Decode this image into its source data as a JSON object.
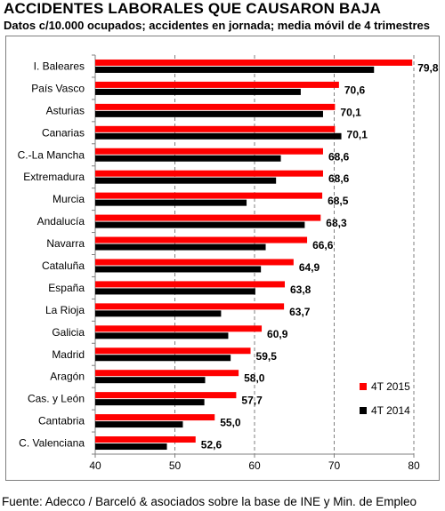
{
  "header": {
    "title": "ACCIDENTES LABORALES QUE CAUSARON BAJA",
    "subtitle": "Datos c/10.000 ocupados; accidentes en jornada; media móvil de 4 trimestres"
  },
  "footer": {
    "source": "Fuente: Adecco / Barceló & asociados sobre la base de INE y Min. de Empleo"
  },
  "chart_data": {
    "type": "bar",
    "orientation": "horizontal",
    "title": "ACCIDENTES LABORALES QUE CAUSARON BAJA",
    "subtitle": "Datos c/10.000 ocupados; accidentes en jornada; media móvil de 4 trimestres",
    "categories": [
      "I. Baleares",
      "País Vasco",
      "Asturias",
      "Canarias",
      "C.-La Mancha",
      "Extremadura",
      "Murcia",
      "Andalucía",
      "Navarra",
      "Cataluña",
      "España",
      "La Rioja",
      "Galicia",
      "Madrid",
      "Aragón",
      "Cas. y León",
      "Cantabria",
      "C. Valenciana"
    ],
    "series": [
      {
        "name": "4T 2015",
        "color": "#ff0000",
        "values": [
          79.8,
          70.6,
          70.1,
          70.1,
          68.6,
          68.6,
          68.5,
          68.3,
          66.6,
          64.9,
          63.8,
          63.7,
          60.9,
          59.5,
          58.0,
          57.7,
          55.0,
          52.6
        ]
      },
      {
        "name": "4T 2014",
        "color": "#000000",
        "values": [
          75.0,
          65.8,
          68.6,
          70.9,
          63.3,
          62.7,
          59.0,
          66.3,
          61.4,
          60.8,
          60.1,
          55.8,
          56.7,
          57.0,
          53.8,
          53.7,
          51.0,
          49.0
        ]
      }
    ],
    "data_labels": [
      "79,8",
      "70,6",
      "70,1",
      "70,1",
      "68,6",
      "68,6",
      "68,5",
      "68,3",
      "66,6",
      "64,9",
      "63,8",
      "63,7",
      "60,9",
      "59,5",
      "58,0",
      "57,7",
      "55,0",
      "52,6"
    ],
    "xlim": [
      40,
      80
    ],
    "xticks": [
      40,
      50,
      60,
      70,
      80
    ],
    "grid": "vertical dashed",
    "legend": "bottom-right"
  }
}
